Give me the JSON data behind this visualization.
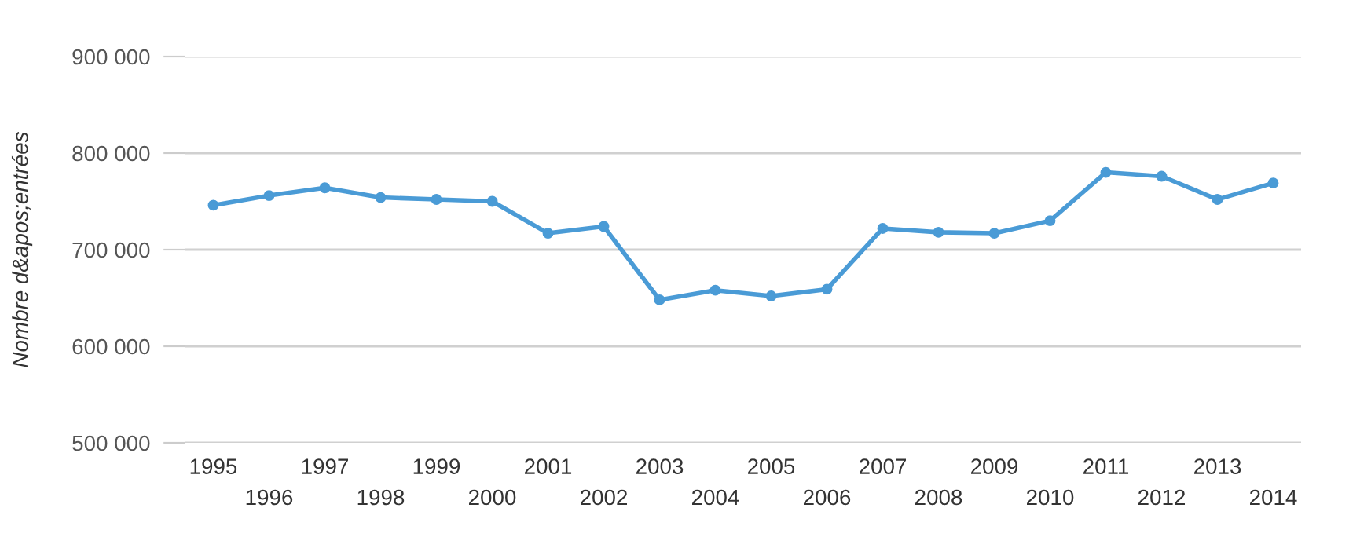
{
  "chart_data": {
    "type": "line",
    "ylabel": "Nombre d&apos;entrées",
    "categories": [
      "1995",
      "1996",
      "1997",
      "1998",
      "1999",
      "2000",
      "2001",
      "2002",
      "2003",
      "2004",
      "2005",
      "2006",
      "2007",
      "2008",
      "2009",
      "2010",
      "2011",
      "2012",
      "2013",
      "2014"
    ],
    "series": [
      {
        "color": "#4a9bd6",
        "values": [
          746000,
          756000,
          764000,
          754000,
          752000,
          750000,
          717000,
          724000,
          648000,
          658000,
          652000,
          659000,
          722000,
          718000,
          717000,
          730000,
          780000,
          776000,
          752000,
          769000
        ]
      }
    ],
    "ylim": [
      500000,
      900000
    ],
    "yticks": [
      {
        "value": 500000,
        "label": "500 000"
      },
      {
        "value": 600000,
        "label": "600 000"
      },
      {
        "value": 700000,
        "label": "700 000"
      },
      {
        "value": 800000,
        "label": "800 000"
      },
      {
        "value": 900000,
        "label": "900 000"
      }
    ],
    "grid": "y",
    "marker": "circle",
    "line_style": "solid",
    "legend": false
  }
}
